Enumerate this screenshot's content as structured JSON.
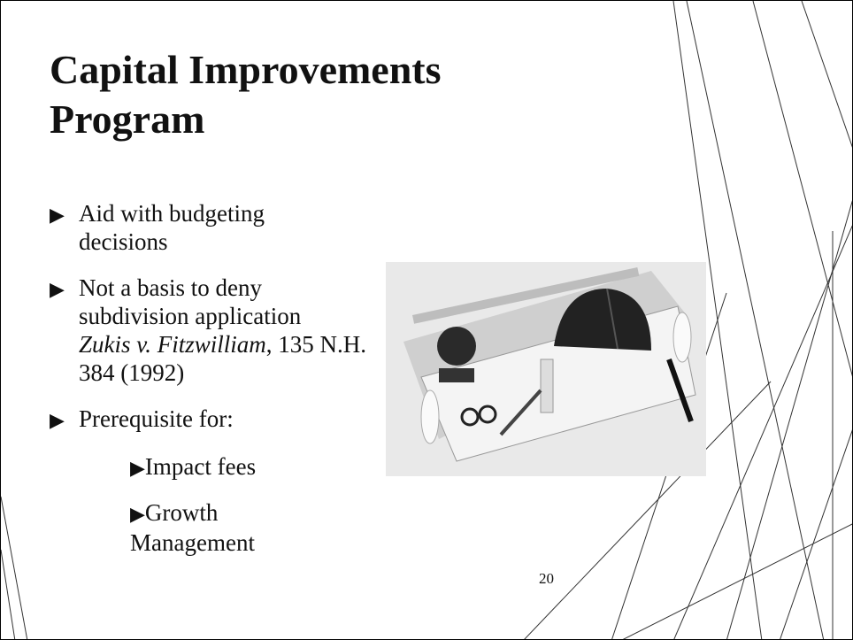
{
  "title": "Capital Improvements Program",
  "bullets": [
    {
      "lines": [
        "Aid with budgeting",
        "decisions"
      ]
    },
    {
      "lines": [
        "Not a basis to deny",
        "subdivision application"
      ],
      "citation": {
        "case": "Zukis v. Fitzwilliam",
        "cite": ", 135 N.H. 384 (1992)"
      }
    },
    {
      "lines": [
        "Prerequisite for:"
      ],
      "subbullets": [
        "Impact fees",
        "Growth Management"
      ]
    }
  ],
  "page_number": "20"
}
